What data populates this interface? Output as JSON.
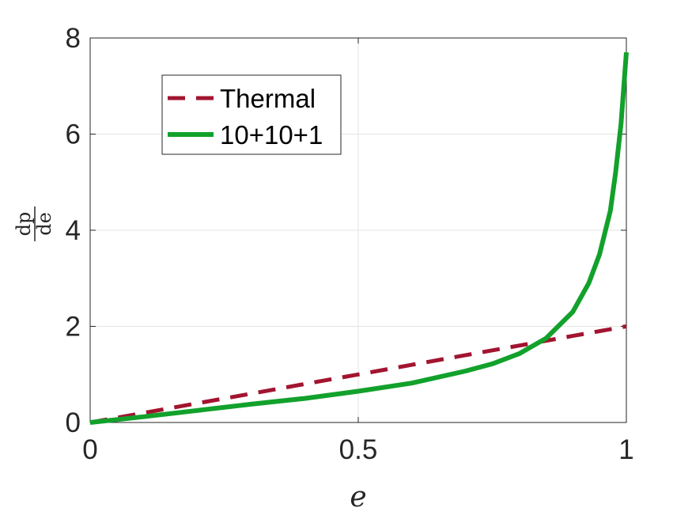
{
  "chart_data": {
    "type": "line",
    "title": "",
    "xlabel": "e",
    "ylabel": {
      "numerator": "dp",
      "denominator": "de"
    },
    "xlim": [
      0,
      1
    ],
    "ylim": [
      0,
      8
    ],
    "xticks": [
      0,
      0.5,
      1
    ],
    "xtick_labels": [
      "0",
      "0.5",
      "1"
    ],
    "yticks": [
      0,
      2,
      4,
      6,
      8
    ],
    "ytick_labels": [
      "0",
      "2",
      "4",
      "6",
      "8"
    ],
    "grid": true,
    "legend_position": "top-left",
    "series": [
      {
        "name": "Thermal",
        "style": "dashed",
        "color": "#a2142f",
        "x": [
          0,
          0.1,
          0.2,
          0.3,
          0.4,
          0.5,
          0.6,
          0.7,
          0.8,
          0.9,
          1.0
        ],
        "y": [
          0,
          0.2,
          0.4,
          0.6,
          0.8,
          1.0,
          1.2,
          1.4,
          1.6,
          1.8,
          2.0
        ]
      },
      {
        "name": "10+10+1",
        "style": "solid",
        "color": "#12a12b",
        "x": [
          0,
          0.1,
          0.2,
          0.3,
          0.4,
          0.5,
          0.6,
          0.7,
          0.75,
          0.8,
          0.85,
          0.9,
          0.93,
          0.95,
          0.97,
          0.98,
          0.99,
          1.0
        ],
        "y": [
          0,
          0.12,
          0.25,
          0.38,
          0.5,
          0.65,
          0.82,
          1.07,
          1.22,
          1.43,
          1.75,
          2.3,
          2.9,
          3.5,
          4.4,
          5.2,
          6.2,
          7.7
        ]
      }
    ]
  }
}
